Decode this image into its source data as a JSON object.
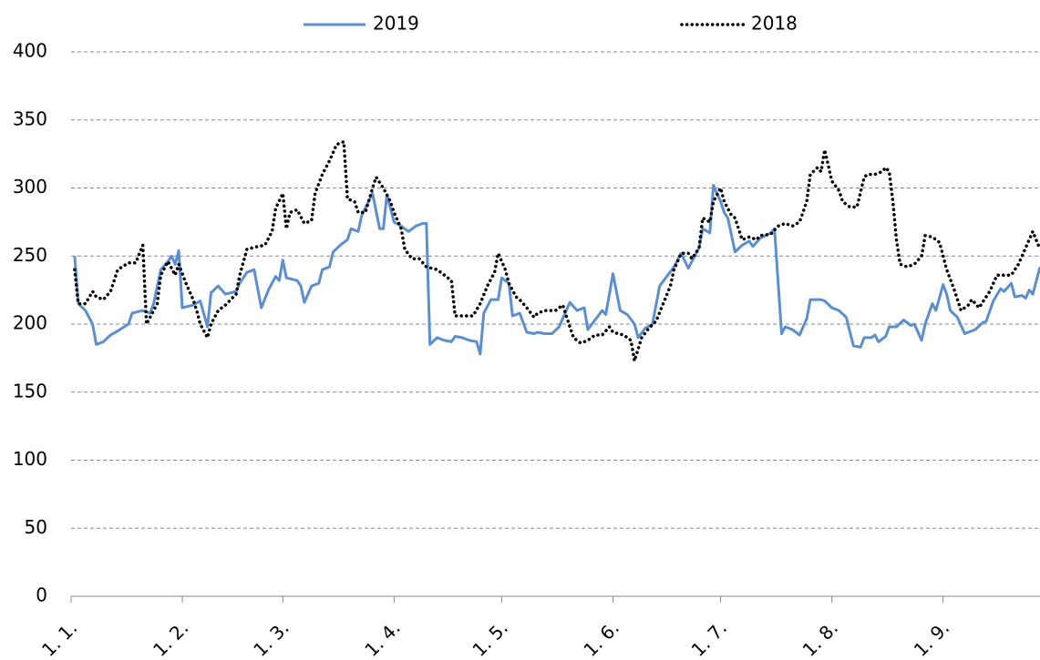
{
  "chart_data": {
    "type": "line",
    "legend": "top",
    "grid": true,
    "xlim": [
      0,
      270
    ],
    "xticks": [
      {
        "value": 0,
        "label": "1. 1."
      },
      {
        "value": 31,
        "label": "1. 2."
      },
      {
        "value": 59,
        "label": "1. 3."
      },
      {
        "value": 90,
        "label": "1. 4."
      },
      {
        "value": 120,
        "label": "1. 5."
      },
      {
        "value": 151,
        "label": "1. 6."
      },
      {
        "value": 181,
        "label": "1. 7."
      },
      {
        "value": 212,
        "label": "1. 8."
      },
      {
        "value": 243,
        "label": "1. 9."
      }
    ],
    "ylim": [
      0,
      400
    ],
    "yticks": [
      0,
      50,
      100,
      150,
      200,
      250,
      300,
      350,
      400
    ],
    "series": [
      {
        "name": "2019",
        "color": "#5b8fcf",
        "style": "solid",
        "x": [
          1,
          2,
          4,
          6,
          7,
          9,
          11,
          13,
          16,
          17,
          20,
          22,
          23,
          25,
          27,
          28,
          29,
          30,
          31,
          34,
          36,
          38,
          39,
          41,
          43,
          46,
          47,
          49,
          51,
          53,
          55,
          57,
          58,
          59,
          60,
          63,
          64,
          65,
          67,
          69,
          70,
          72,
          73,
          75,
          77,
          78,
          80,
          81,
          84,
          86,
          87,
          88,
          90,
          92,
          94,
          96,
          98,
          99,
          100,
          102,
          104,
          106,
          107,
          109,
          111,
          113,
          114,
          115,
          117,
          119,
          120,
          122,
          123,
          125,
          127,
          129,
          130,
          132,
          134,
          136,
          138,
          139,
          141,
          143,
          144,
          146,
          148,
          149,
          151,
          153,
          155,
          157,
          158,
          160,
          162,
          164,
          166,
          168,
          170,
          172,
          173,
          175,
          176,
          178,
          179,
          181,
          182,
          183,
          185,
          187,
          189,
          190,
          192,
          195,
          196,
          198,
          199,
          201,
          203,
          205,
          206,
          209,
          210,
          212,
          214,
          216,
          218,
          220,
          221,
          223,
          224,
          225,
          227,
          228,
          230,
          232,
          234,
          235,
          237,
          238,
          240,
          241,
          243,
          244,
          245,
          247,
          249,
          252,
          254,
          255,
          257,
          259,
          260,
          262,
          263,
          265,
          266,
          267,
          268,
          270
        ],
        "values": [
          250,
          215,
          210,
          200,
          185,
          187,
          192,
          195,
          200,
          208,
          210,
          208,
          215,
          240,
          246,
          250,
          244,
          254,
          212,
          214,
          217,
          198,
          223,
          228,
          222,
          224,
          230,
          238,
          240,
          212,
          225,
          235,
          232,
          247,
          234,
          232,
          228,
          216,
          228,
          230,
          240,
          242,
          253,
          258,
          262,
          270,
          268,
          280,
          296,
          270,
          270,
          295,
          275,
          272,
          268,
          272,
          274,
          274,
          185,
          190,
          188,
          187,
          191,
          190,
          188,
          187,
          178,
          208,
          218,
          218,
          234,
          230,
          206,
          208,
          194,
          193,
          194,
          193,
          193,
          198,
          210,
          216,
          210,
          212,
          196,
          203,
          210,
          207,
          237,
          210,
          207,
          200,
          190,
          197,
          200,
          228,
          235,
          242,
          252,
          241,
          246,
          256,
          270,
          267,
          302,
          290,
          282,
          278,
          253,
          258,
          261,
          257,
          263,
          267,
          270,
          193,
          198,
          196,
          192,
          204,
          218,
          218,
          217,
          212,
          210,
          205,
          184,
          183,
          190,
          190,
          192,
          187,
          191,
          198,
          198,
          203,
          199,
          200,
          188,
          200,
          215,
          210,
          229,
          222,
          210,
          205,
          193,
          196,
          201,
          202,
          217,
          226,
          224,
          230,
          220,
          221,
          219,
          225,
          222,
          242
        ]
      },
      {
        "name": "2018",
        "color": "#000000",
        "style": "dotted",
        "x": [
          1,
          2,
          4,
          6,
          7,
          9,
          11,
          13,
          16,
          18,
          20,
          21,
          23,
          24,
          25,
          27,
          29,
          30,
          32,
          34,
          35,
          36,
          38,
          39,
          41,
          43,
          46,
          47,
          49,
          52,
          54,
          56,
          57,
          59,
          60,
          61,
          63,
          65,
          67,
          68,
          70,
          72,
          74,
          76,
          77,
          79,
          80,
          82,
          84,
          85,
          87,
          89,
          90,
          92,
          93,
          95,
          97,
          99,
          102,
          104,
          106,
          107,
          110,
          112,
          114,
          116,
          118,
          119,
          121,
          122,
          124,
          125,
          127,
          129,
          130,
          132,
          135,
          137,
          139,
          140,
          142,
          144,
          146,
          148,
          150,
          151,
          154,
          156,
          157,
          159,
          161,
          163,
          165,
          167,
          168,
          170,
          172,
          173,
          175,
          176,
          178,
          179,
          181,
          182,
          184,
          185,
          187,
          189,
          191,
          192,
          195,
          197,
          199,
          201,
          203,
          205,
          206,
          208,
          209,
          210,
          212,
          214,
          215,
          217,
          219,
          221,
          222,
          224,
          226,
          227,
          228,
          229,
          230,
          231,
          233,
          235,
          237,
          238,
          240,
          242,
          244,
          246,
          248,
          250,
          251,
          253,
          255,
          256,
          258,
          260,
          262,
          264,
          265,
          267,
          268,
          270
        ],
        "values": [
          240,
          215,
          215,
          224,
          220,
          218,
          224,
          240,
          245,
          245,
          258,
          200,
          210,
          215,
          236,
          246,
          236,
          244,
          230,
          218,
          210,
          200,
          190,
          200,
          210,
          214,
          222,
          236,
          255,
          257,
          258,
          268,
          285,
          296,
          270,
          282,
          284,
          274,
          276,
          296,
          310,
          320,
          332,
          334,
          292,
          290,
          282,
          282,
          300,
          308,
          300,
          290,
          282,
          270,
          255,
          248,
          248,
          242,
          240,
          236,
          232,
          206,
          206,
          206,
          215,
          228,
          238,
          252,
          240,
          230,
          220,
          218,
          212,
          205,
          208,
          210,
          210,
          214,
          198,
          190,
          186,
          188,
          192,
          192,
          198,
          194,
          192,
          188,
          173,
          190,
          197,
          202,
          215,
          228,
          240,
          252,
          252,
          248,
          256,
          278,
          275,
          290,
          300,
          290,
          280,
          278,
          262,
          264,
          262,
          265,
          266,
          272,
          274,
          272,
          275,
          290,
          310,
          315,
          312,
          328,
          305,
          298,
          290,
          286,
          286,
          308,
          310,
          310,
          312,
          315,
          312,
          290,
          262,
          244,
          242,
          244,
          250,
          265,
          264,
          260,
          240,
          226,
          210,
          214,
          218,
          212,
          220,
          224,
          236,
          236,
          236,
          244,
          250,
          262,
          268,
          255
        ]
      }
    ]
  }
}
